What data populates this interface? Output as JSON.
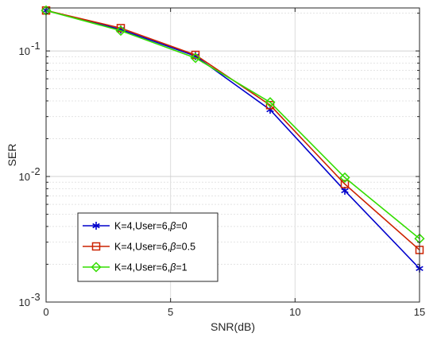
{
  "chart_data": {
    "type": "line",
    "xlabel": "SNR(dB)",
    "ylabel": "SER",
    "xlim": [
      0,
      15
    ],
    "ylim": [
      0.001,
      0.22
    ],
    "yscale": "log",
    "grid": true,
    "legend_position": "lower-left",
    "x_ticks": [
      0,
      5,
      10,
      15
    ],
    "x_tick_labels": [
      "0",
      "5",
      "10",
      "15"
    ],
    "y_ticks": [
      {
        "value": 0.1,
        "base": "10",
        "exp": "-1"
      },
      {
        "value": 0.01,
        "base": "10",
        "exp": "-2"
      },
      {
        "value": 0.001,
        "base": "10",
        "exp": "-3"
      }
    ],
    "x": [
      0,
      3,
      6,
      9,
      12,
      15
    ],
    "series": [
      {
        "name_prefix": "K=4,User=6,",
        "name_symbol": "β",
        "name_suffix": "=0",
        "color": "#0000cc",
        "marker": "asterisk",
        "values": [
          0.21,
          0.148,
          0.091,
          0.034,
          0.0077,
          0.00185
        ]
      },
      {
        "name_prefix": "K=4,User=6,",
        "name_symbol": "β",
        "name_suffix": "=0.5",
        "color": "#cc2200",
        "marker": "square",
        "values": [
          0.21,
          0.152,
          0.093,
          0.037,
          0.0087,
          0.0026
        ]
      },
      {
        "name_prefix": "K=4,User=6,",
        "name_symbol": "β",
        "name_suffix": "=1",
        "color": "#33dd00",
        "marker": "diamond",
        "values": [
          0.21,
          0.145,
          0.088,
          0.039,
          0.0098,
          0.0032
        ]
      }
    ]
  }
}
